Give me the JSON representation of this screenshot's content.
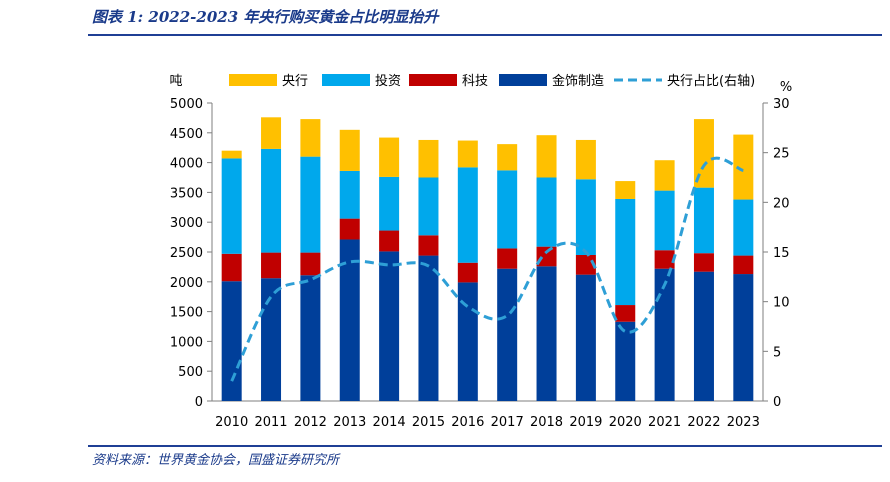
{
  "header": {
    "title": "图表 1:  2022-2023 年央行购买黄金占比明显抬升"
  },
  "footer": {
    "source": "资料来源：世界黄金协会，国盛证券研究所"
  },
  "chart_data": {
    "type": "bar",
    "stacked": true,
    "categories": [
      "2010",
      "2011",
      "2012",
      "2013",
      "2014",
      "2015",
      "2016",
      "2017",
      "2018",
      "2019",
      "2020",
      "2021",
      "2022",
      "2023"
    ],
    "series": [
      {
        "name": "金饰制造",
        "color": "#003f9a",
        "values": [
          2010,
          2060,
          2110,
          2710,
          2510,
          2440,
          1990,
          2220,
          2260,
          2120,
          1330,
          2220,
          2170,
          2130
        ]
      },
      {
        "name": "科技",
        "color": "#c00000",
        "values": [
          460,
          430,
          380,
          350,
          350,
          340,
          330,
          340,
          330,
          330,
          280,
          310,
          310,
          310
        ]
      },
      {
        "name": "投资",
        "color": "#00a8ec",
        "values": [
          1600,
          1740,
          1610,
          800,
          900,
          970,
          1600,
          1310,
          1160,
          1270,
          1780,
          1000,
          1100,
          940
        ]
      },
      {
        "name": "央行",
        "color": "#ffc000",
        "values": [
          130,
          530,
          630,
          690,
          660,
          630,
          450,
          440,
          710,
          660,
          300,
          510,
          1150,
          1090
        ]
      },
      {
        "name": "央行占比(右轴)",
        "color": "#2e9fd6",
        "axis": "right",
        "type": "line",
        "values": [
          2.0,
          10.5,
          12.2,
          14.0,
          13.7,
          13.6,
          9.5,
          8.6,
          15.0,
          15.0,
          7.0,
          11.7,
          23.7,
          23.2
        ]
      }
    ],
    "yleft": {
      "label": "吨",
      "min": 0,
      "max": 5000,
      "ticks": [
        "0",
        "500",
        "1000",
        "1500",
        "2000",
        "2500",
        "3000",
        "3500",
        "4000",
        "4500",
        "5000"
      ]
    },
    "yright": {
      "label": "%",
      "min": 0,
      "max": 30,
      "ticks": [
        "0",
        "5",
        "10",
        "15",
        "20",
        "25",
        "30"
      ]
    },
    "legend": {
      "position": "top"
    }
  }
}
